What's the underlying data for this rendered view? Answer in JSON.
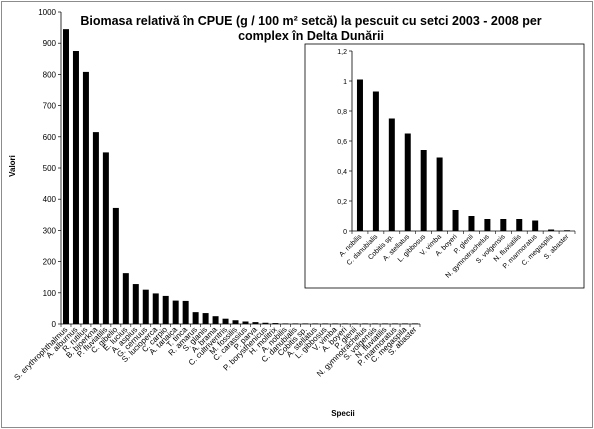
{
  "chart_data": [
    {
      "type": "bar",
      "title_lines": [
        "Biomasa relativă în CPUE (g / 100 m² setcă) la pescuit cu setci 2003 - 2008 per",
        "complex în Delta Dunării"
      ],
      "xlabel": "Specii",
      "ylabel": "Valori",
      "ylim": [
        0,
        1000
      ],
      "yticks": [
        "0",
        "100",
        "200",
        "300",
        "400",
        "500",
        "600",
        "700",
        "800",
        "900",
        "1000"
      ],
      "grid": false,
      "bar_color": "#000000",
      "categories": [
        "S. erythrophthalmus",
        "A. alburnus",
        "R. rutilus",
        "B. bjoerkna",
        "P. fluviatilis",
        "C. gibelio",
        "E. lucius",
        "A. aspius",
        "G. cernuus",
        "S. lucioperca",
        "C. carpio",
        "A. tanaica",
        "T. tinca",
        "R. amarus",
        "S. glanis",
        "A. brama",
        "C. cultriventris",
        "M. fossilis",
        "C. carassius",
        "P. parva",
        "P. borysthenicus",
        "H. molitrix",
        "A. nobilis",
        "C. danubialis",
        "Cobitis sp.",
        "A. stellatus",
        "L. gibbosus",
        "V. vimba",
        "A. boyeri",
        "P. glenii",
        "N. gymnotrachelus",
        "S. volgensis",
        "N. fluviatilis",
        "P. marmoratus",
        "C. megaspila",
        "S. abaster"
      ],
      "values": [
        945,
        875,
        808,
        615,
        550,
        372,
        163,
        128,
        110,
        98,
        90,
        75,
        74,
        38,
        35,
        25,
        17,
        12,
        8,
        6,
        4,
        3,
        1.01,
        0.93,
        0.75,
        0.65,
        0.54,
        0.49,
        0.14,
        0.1,
        0.08,
        0.08,
        0.08,
        0.07,
        0.01,
        0.005
      ]
    },
    {
      "type": "bar",
      "title": "",
      "ylim": [
        0,
        1.2
      ],
      "yticks": [
        "0",
        "0,2",
        "0,4",
        "0,6",
        "0,8",
        "1",
        "1,2"
      ],
      "grid": false,
      "bar_color": "#000000",
      "categories": [
        "A. nobilis",
        "C. danubialis",
        "Cobitis sp.",
        "A. stellatus",
        "L. gibbosus",
        "V. vimba",
        "A. boyeri",
        "P. glenii",
        "N. gymnotrachelus",
        "S. volgensis",
        "N. fluviatilis",
        "P. marmoratus",
        "C. megaspila",
        "S. abaster"
      ],
      "values": [
        1.01,
        0.93,
        0.75,
        0.65,
        0.54,
        0.49,
        0.14,
        0.1,
        0.08,
        0.08,
        0.08,
        0.07,
        0.01,
        0.005
      ]
    }
  ],
  "colors": {
    "bars": "#000000",
    "axis": "#000000",
    "border": "#8c8c8c",
    "background": "#ffffff"
  }
}
